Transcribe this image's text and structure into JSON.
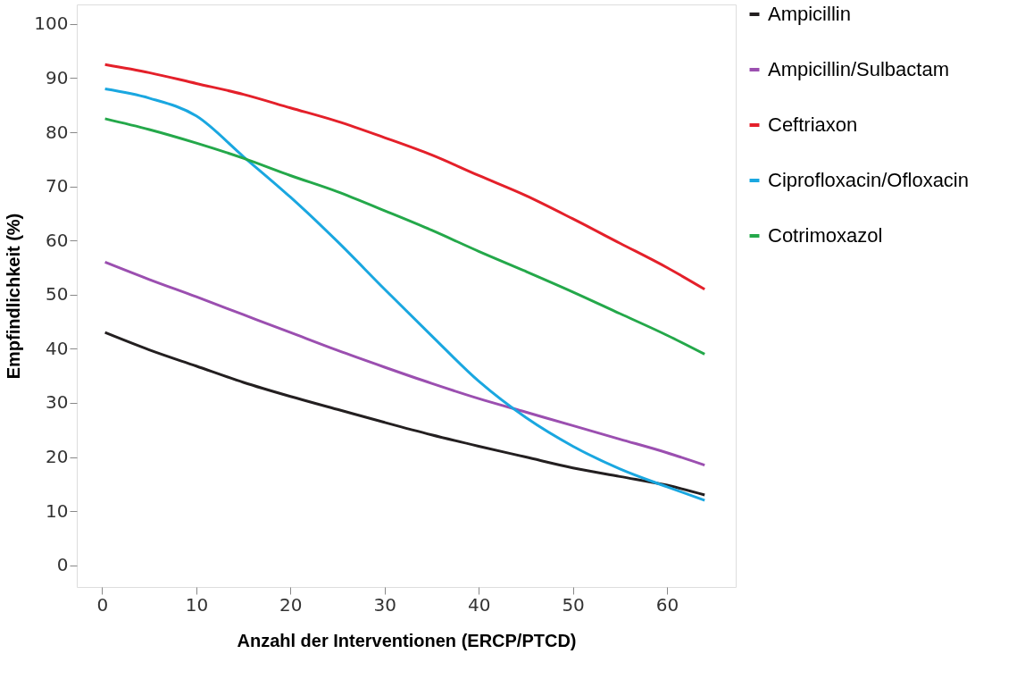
{
  "chart_data": {
    "type": "line",
    "xlabel": "Anzahl der Interventionen (ERCP/PTCD)",
    "ylabel": "Empfindlichkeit (%)",
    "x": [
      0.3,
      5,
      10,
      15,
      20,
      25,
      30,
      35,
      40,
      45,
      50,
      55,
      60,
      64
    ],
    "series": [
      {
        "name": "Ampicillin",
        "color": "#231f20",
        "values": [
          43,
          39.8,
          36.8,
          33.8,
          31.2,
          28.8,
          26.4,
          24.1,
          22,
          20,
          18,
          16.4,
          14.8,
          13
        ]
      },
      {
        "name": "Ampicillin/Sulbactam",
        "color": "#9b4fb0",
        "values": [
          56,
          52.8,
          49.6,
          46.3,
          43,
          39.7,
          36.6,
          33.6,
          30.8,
          28.3,
          25.8,
          23.3,
          20.8,
          18.5
        ]
      },
      {
        "name": "Ceftriaxon",
        "color": "#e4202a",
        "values": [
          92.5,
          91,
          89,
          87,
          84.5,
          82,
          79,
          75.8,
          72,
          68.3,
          64,
          59.5,
          55,
          51
        ]
      },
      {
        "name": "Ciprofloxacin/Ofloxacin",
        "color": "#1aa7e0",
        "values": [
          88,
          86.3,
          83,
          75.5,
          68,
          59.8,
          51,
          42.4,
          34,
          27.3,
          22,
          17.8,
          14.5,
          12
        ]
      },
      {
        "name": "Cotrimoxazol",
        "color": "#24a84a",
        "values": [
          82.5,
          80.5,
          78,
          75.2,
          72,
          69,
          65.5,
          61.9,
          58,
          54.3,
          50.5,
          46.5,
          42.5,
          39
        ]
      }
    ],
    "xlim": [
      -2.7,
      67.3
    ],
    "ylim": [
      -4,
      103.6
    ],
    "xticks": [
      0,
      10,
      20,
      30,
      40,
      50,
      60
    ],
    "yticks": [
      0,
      10,
      20,
      30,
      40,
      50,
      60,
      70,
      80,
      90,
      100
    ],
    "grid": false,
    "legend": "right",
    "marker": "none",
    "line_style": "solid"
  }
}
